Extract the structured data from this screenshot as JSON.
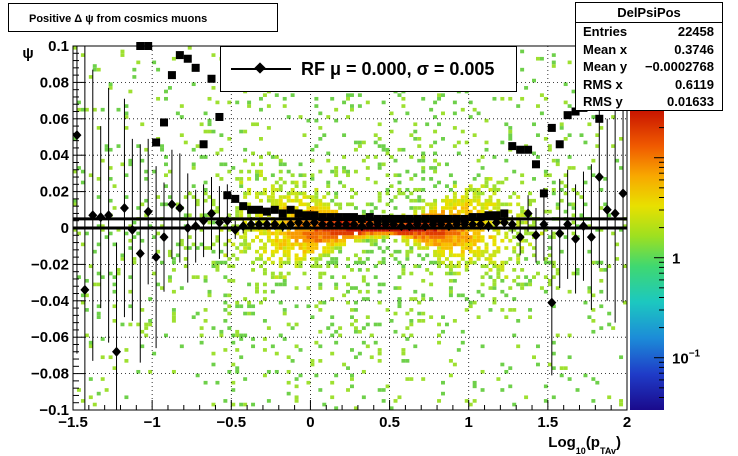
{
  "header": {
    "title": "Positive Δ ψ from cosmics muons"
  },
  "stats": {
    "name": "DelPsiPos",
    "rows": [
      {
        "label": "Entries",
        "value": "22458"
      },
      {
        "label": "Mean x",
        "value": "0.3746"
      },
      {
        "label": "Mean y",
        "value": "−0.0002768"
      },
      {
        "label": "RMS x",
        "value": "0.6119"
      },
      {
        "label": "RMS y",
        "value": "0.01633"
      }
    ]
  },
  "fit": {
    "legend": "RF μ =  0.000, σ =   0.005",
    "mean": 0.0,
    "sigma": 0.005
  },
  "chart_data": {
    "type": "heatmap",
    "title": "Positive Δ ψ from cosmics muons",
    "xlabel": "Log₁₀(pₜₐᵧ)",
    "xlabel_main": "Log",
    "xlabel_sub": "10",
    "xlabel_mid": "(p",
    "xlabel_sub2": "TAv",
    "xlabel_end": ")",
    "ylabel": "ψ",
    "xlim": [
      -1.5,
      2.0
    ],
    "ylim": [
      -0.1,
      0.1
    ],
    "zscale": "log",
    "x_ticks": [
      {
        "v": -1.5,
        "label": "−1.5"
      },
      {
        "v": -1.0,
        "label": "−1"
      },
      {
        "v": -0.5,
        "label": "−0.5"
      },
      {
        "v": 0.0,
        "label": "0"
      },
      {
        "v": 0.5,
        "label": "0.5"
      },
      {
        "v": 1.0,
        "label": "1"
      },
      {
        "v": 1.5,
        "label": "1.5"
      },
      {
        "v": 2.0,
        "label": "2"
      }
    ],
    "y_ticks": [
      {
        "v": 0.1,
        "label": "0.1"
      },
      {
        "v": 0.08,
        "label": "0.08"
      },
      {
        "v": 0.06,
        "label": "0.06"
      },
      {
        "v": 0.04,
        "label": "0.04"
      },
      {
        "v": 0.02,
        "label": "0.02"
      },
      {
        "v": 0.0,
        "label": "0"
      },
      {
        "v": -0.02,
        "label": "−0.02"
      },
      {
        "v": -0.04,
        "label": "−0.04"
      },
      {
        "v": -0.06,
        "label": "−0.06"
      },
      {
        "v": -0.08,
        "label": "−0.08"
      },
      {
        "v": -0.1,
        "label": "−0.1"
      }
    ],
    "z_ticks": [
      {
        "v": 1,
        "label": "1"
      },
      {
        "v": 0.1,
        "label": "10⁻¹",
        "base": "10",
        "exp": "−1"
      }
    ],
    "zlim": [
      0.03,
      30
    ],
    "grid": true,
    "colors": {
      "low": "#2a0a8a",
      "mid": "#7ad82a",
      "high": "#cc1a00"
    },
    "series": [
      {
        "name": "RF μ",
        "marker": "diamond",
        "points": [
          [
            -1.475,
            0.051,
            0.12
          ],
          [
            -1.425,
            -0.034,
            0.16
          ],
          [
            -1.375,
            0.007,
            0.08
          ],
          [
            -1.325,
            0.006,
            0.05
          ],
          [
            -1.275,
            0.007,
            0.07
          ],
          [
            -1.225,
            -0.068,
            0.06
          ],
          [
            -1.175,
            0.011,
            0.06
          ],
          [
            -1.125,
            -0.001,
            0.05
          ],
          [
            -1.075,
            -0.014,
            0.06
          ],
          [
            -1.025,
            0.009,
            0.04
          ],
          [
            -0.975,
            -0.016,
            0.05
          ],
          [
            -0.925,
            -0.005,
            0.03
          ],
          [
            -0.875,
            0.013,
            0.03
          ],
          [
            -0.825,
            0.011,
            0.03
          ],
          [
            -0.775,
            0.0,
            0.03
          ],
          [
            -0.725,
            0.001,
            0.02
          ],
          [
            -0.675,
            0.004,
            0.02
          ],
          [
            -0.625,
            0.008,
            0.02
          ],
          [
            -0.575,
            0.003,
            0.02
          ],
          [
            -0.525,
            0.004,
            0.02
          ],
          [
            -0.475,
            -0.001,
            0.005
          ],
          [
            -0.425,
            0.001,
            0.004
          ],
          [
            -0.375,
            0.002,
            0.004
          ],
          [
            -0.325,
            0.002,
            0.003
          ],
          [
            -0.275,
            0.002,
            0.003
          ],
          [
            -0.225,
            0.002,
            0.003
          ],
          [
            -0.175,
            0.001,
            0.003
          ],
          [
            -0.125,
            0.002,
            0.003
          ],
          [
            -0.075,
            0.003,
            0.003
          ],
          [
            -0.025,
            0.002,
            0.002
          ],
          [
            0.025,
            0.003,
            0.002
          ],
          [
            0.075,
            0.002,
            0.002
          ],
          [
            0.125,
            0.002,
            0.002
          ],
          [
            0.175,
            0.002,
            0.002
          ],
          [
            0.225,
            0.002,
            0.002
          ],
          [
            0.275,
            0.002,
            0.002
          ],
          [
            0.325,
            0.001,
            0.002
          ],
          [
            0.375,
            0.002,
            0.002
          ],
          [
            0.425,
            0.002,
            0.002
          ],
          [
            0.475,
            0.002,
            0.002
          ],
          [
            0.525,
            0.002,
            0.002
          ],
          [
            0.575,
            0.001,
            0.002
          ],
          [
            0.625,
            0.001,
            0.002
          ],
          [
            0.675,
            0.002,
            0.002
          ],
          [
            0.725,
            0.001,
            0.002
          ],
          [
            0.775,
            0.002,
            0.002
          ],
          [
            0.825,
            0.002,
            0.002
          ],
          [
            0.875,
            0.001,
            0.002
          ],
          [
            0.925,
            0.002,
            0.002
          ],
          [
            0.975,
            0.002,
            0.002
          ],
          [
            1.025,
            0.002,
            0.002
          ],
          [
            1.075,
            0.002,
            0.003
          ],
          [
            1.125,
            0.001,
            0.003
          ],
          [
            1.175,
            0.003,
            0.003
          ],
          [
            1.225,
            0.003,
            0.004
          ],
          [
            1.275,
            0.002,
            0.005
          ],
          [
            1.325,
            -0.005,
            0.01
          ],
          [
            1.375,
            0.008,
            0.01
          ],
          [
            1.425,
            -0.004,
            0.015
          ],
          [
            1.475,
            0.002,
            0.02
          ],
          [
            1.525,
            -0.041,
            0.04
          ],
          [
            1.575,
            -0.003,
            0.03
          ],
          [
            1.625,
            0.002,
            0.03
          ],
          [
            1.675,
            -0.006,
            0.03
          ],
          [
            1.725,
            0.001,
            0.03
          ],
          [
            1.775,
            -0.005,
            0.04
          ],
          [
            1.825,
            0.028,
            0.05
          ],
          [
            1.875,
            0.01,
            0.05
          ],
          [
            1.925,
            0.008,
            0.06
          ],
          [
            1.975,
            0.019,
            0.06
          ]
        ]
      },
      {
        "name": "RF σ",
        "marker": "square",
        "points": [
          [
            -1.075,
            0.1
          ],
          [
            -1.025,
            0.1
          ],
          [
            -0.975,
            0.047
          ],
          [
            -0.925,
            0.058
          ],
          [
            -0.875,
            0.084
          ],
          [
            -0.825,
            0.095
          ],
          [
            -0.775,
            0.093
          ],
          [
            -0.725,
            0.088
          ],
          [
            -0.675,
            0.046
          ],
          [
            -0.625,
            0.082
          ],
          [
            -0.575,
            0.061
          ],
          [
            -0.525,
            0.018
          ],
          [
            -0.475,
            0.016
          ],
          [
            -0.425,
            0.012
          ],
          [
            -0.375,
            0.01
          ],
          [
            -0.325,
            0.01
          ],
          [
            -0.275,
            0.009
          ],
          [
            -0.225,
            0.01
          ],
          [
            -0.175,
            0.008
          ],
          [
            -0.125,
            0.01
          ],
          [
            -0.075,
            0.008
          ],
          [
            -0.025,
            0.007
          ],
          [
            0.025,
            0.007
          ],
          [
            0.075,
            0.006
          ],
          [
            0.125,
            0.006
          ],
          [
            0.175,
            0.006
          ],
          [
            0.225,
            0.006
          ],
          [
            0.275,
            0.006
          ],
          [
            0.325,
            0.005
          ],
          [
            0.375,
            0.006
          ],
          [
            0.425,
            0.005
          ],
          [
            0.475,
            0.005
          ],
          [
            0.525,
            0.005
          ],
          [
            0.575,
            0.005
          ],
          [
            0.625,
            0.005
          ],
          [
            0.675,
            0.005
          ],
          [
            0.725,
            0.005
          ],
          [
            0.775,
            0.005
          ],
          [
            0.825,
            0.005
          ],
          [
            0.875,
            0.005
          ],
          [
            0.925,
            0.005
          ],
          [
            0.975,
            0.005
          ],
          [
            1.025,
            0.006
          ],
          [
            1.075,
            0.006
          ],
          [
            1.125,
            0.007
          ],
          [
            1.175,
            0.007
          ],
          [
            1.225,
            0.008
          ],
          [
            1.275,
            0.045
          ],
          [
            1.325,
            0.043
          ],
          [
            1.375,
            0.043
          ],
          [
            1.425,
            0.035
          ],
          [
            1.475,
            0.019
          ],
          [
            1.525,
            0.055
          ],
          [
            1.575,
            0.046
          ],
          [
            1.625,
            0.062
          ],
          [
            1.675,
            0.064
          ],
          [
            1.725,
            0.066
          ],
          [
            1.775,
            0.083
          ],
          [
            1.825,
            0.06
          ],
          [
            1.875,
            0.094
          ],
          [
            1.925,
            0.096
          ],
          [
            1.975,
            0.099
          ]
        ]
      }
    ],
    "fit_lines": [
      0.0,
      0.005
    ]
  }
}
